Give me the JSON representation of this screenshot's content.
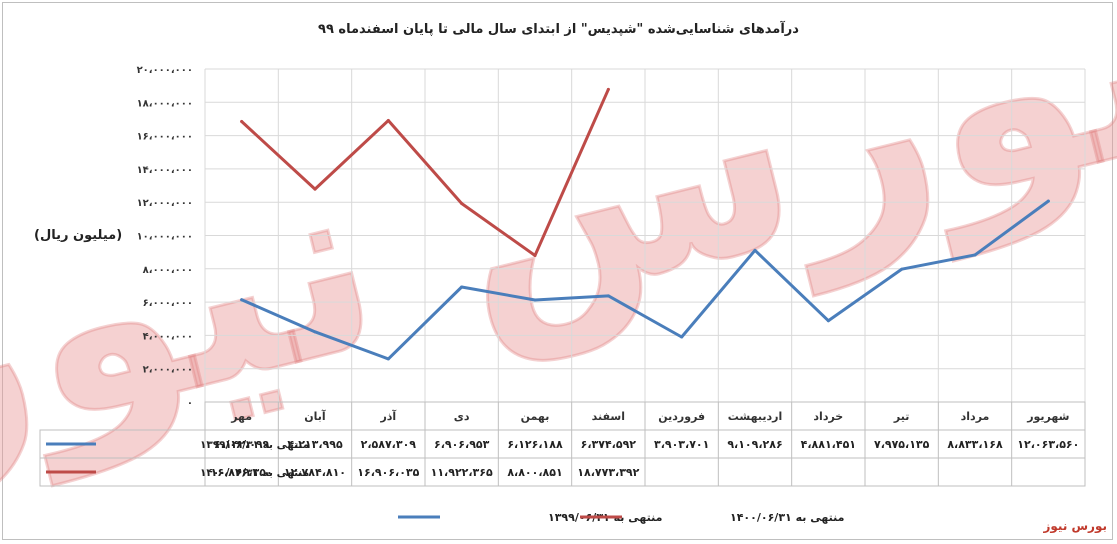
{
  "chart_data": {
    "type": "line",
    "title": "درآمدهای شناسایی‌شده \"شپدیس\" از ابتدای سال مالی تا پایان اسفندماه ۹۹",
    "ylabel": "(میلیون ریال)",
    "xlabel": "",
    "ylim": [
      0,
      20000000
    ],
    "yticks": [
      0,
      2000000,
      4000000,
      6000000,
      8000000,
      10000000,
      12000000,
      14000000,
      16000000,
      18000000,
      20000000
    ],
    "ytick_labels": [
      "۰",
      "۲،۰۰۰،۰۰۰",
      "۴،۰۰۰،۰۰۰",
      "۶،۰۰۰،۰۰۰",
      "۸،۰۰۰،۰۰۰",
      "۱۰،۰۰۰،۰۰۰",
      "۱۲،۰۰۰،۰۰۰",
      "۱۴،۰۰۰،۰۰۰",
      "۱۶،۰۰۰،۰۰۰",
      "۱۸،۰۰۰،۰۰۰",
      "۲۰،۰۰۰،۰۰۰"
    ],
    "grid": true,
    "legend_position": "bottom",
    "categories": [
      "مهر",
      "آبان",
      "آذر",
      "دی",
      "بهمن",
      "اسفند",
      "فروردین",
      "اردیبهشت",
      "خرداد",
      "تیر",
      "مرداد",
      "شهریور"
    ],
    "series": [
      {
        "name": "منتهی به ۱۳۹۹/۰۶/۳۱",
        "color": "#4a7ebb",
        "values": [
          6142099,
          4213995,
          2587309,
          6906953,
          6126188,
          6374592,
          3903701,
          9109286,
          4881451,
          7975135,
          8833168,
          12063560
        ],
        "labels": [
          "۶،۱۴۲،۰۹۹",
          "۴،۲۱۳،۹۹۵",
          "۲،۵۸۷،۳۰۹",
          "۶،۹۰۶،۹۵۳",
          "۶،۱۲۶،۱۸۸",
          "۶،۳۷۴،۵۹۲",
          "۳،۹۰۳،۷۰۱",
          "۹،۱۰۹،۲۸۶",
          "۴،۸۸۱،۴۵۱",
          "۷،۹۷۵،۱۳۵",
          "۸،۸۳۳،۱۶۸",
          "۱۲،۰۶۳،۵۶۰"
        ]
      },
      {
        "name": "منتهی به ۱۴۰۰/۰۶/۳۱",
        "color": "#be4b48",
        "values": [
          16846350,
          12784810,
          16906035,
          11922365,
          8800851,
          18773392,
          null,
          null,
          null,
          null,
          null,
          null
        ],
        "labels": [
          "۱۶،۸۴۶،۳۵۰",
          "۱۲،۷۸۴،۸۱۰",
          "۱۶،۹۰۶،۰۳۵",
          "۱۱،۹۲۲،۳۶۵",
          "۸،۸۰۰،۸۵۱",
          "۱۸،۷۷۳،۳۹۲",
          "",
          "",
          "",
          "",
          "",
          ""
        ]
      }
    ]
  },
  "watermark_text": "بورس نیوز",
  "brand_text": "بورس نیوز"
}
